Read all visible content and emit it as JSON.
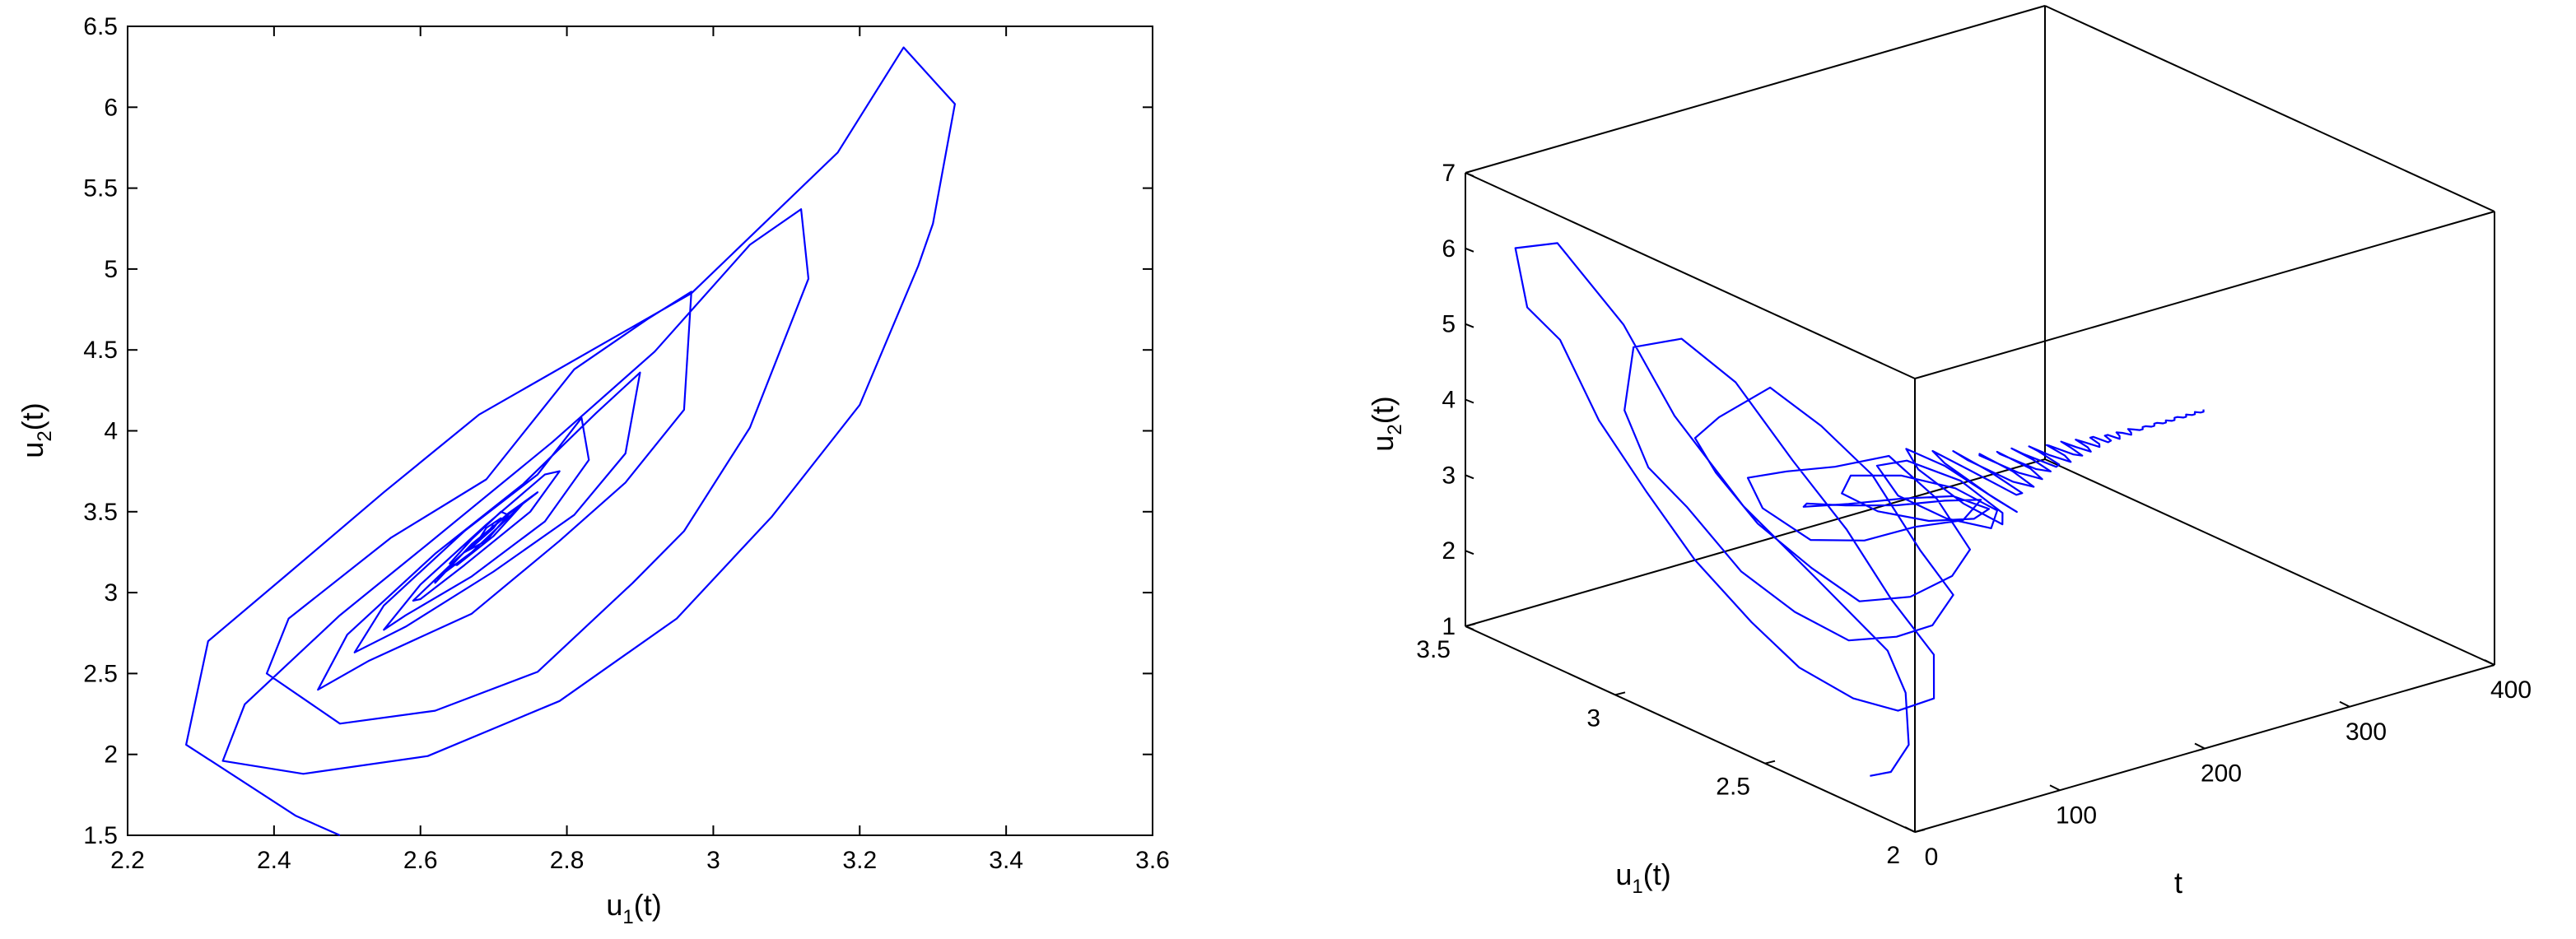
{
  "chart_data": [
    {
      "type": "line",
      "title": "",
      "xlabel": "u1(t)",
      "xlabel_main": "u",
      "xlabel_sub": "1",
      "xlabel_tail": "(t)",
      "ylabel": "u2(t)",
      "ylabel_main": "u",
      "ylabel_sub": "2",
      "ylabel_tail": "(t)",
      "xlim": [
        2.2,
        3.6
      ],
      "ylim": [
        1.5,
        6.5
      ],
      "grid": false,
      "xticks": [
        2.2,
        2.4,
        2.6,
        2.8,
        3.0,
        3.2,
        3.4,
        3.6
      ],
      "xtick_labels": [
        "2.2",
        "2.4",
        "2.6",
        "2.8",
        "3",
        "3.2",
        "3.4",
        "3.6"
      ],
      "yticks": [
        1.5,
        2.0,
        2.5,
        3.0,
        3.5,
        4.0,
        4.5,
        5.0,
        5.5,
        6.0,
        6.5
      ],
      "ytick_labels": [
        "1.5",
        "2",
        "2.5",
        "3",
        "3.5",
        "4",
        "4.5",
        "5",
        "5.5",
        "6",
        "6.5"
      ],
      "line_color": "#0000ff",
      "series": [
        {
          "x": [
            2.49,
            2.43,
            2.28,
            2.31,
            2.42,
            2.55,
            2.68,
            2.97,
            3.17,
            3.26,
            3.33,
            3.3,
            3.28,
            3.2,
            3.08,
            2.95,
            2.79,
            2.61,
            2.44,
            2.33,
            2.36,
            2.49,
            2.61,
            2.78,
            2.92,
            3.05,
            3.12,
            3.13,
            3.05,
            2.96,
            2.89,
            2.76,
            2.62,
            2.49,
            2.39,
            2.42,
            2.56,
            2.69,
            2.81,
            2.91,
            2.97,
            2.96,
            2.88,
            2.79,
            2.67,
            2.53,
            2.46,
            2.5,
            2.62,
            2.74,
            2.84,
            2.9,
            2.88,
            2.81,
            2.7,
            2.58,
            2.51,
            2.55,
            2.66,
            2.76,
            2.82,
            2.83,
            2.77,
            2.67,
            2.58,
            2.55,
            2.6,
            2.69,
            2.77,
            2.79,
            2.75,
            2.66,
            2.6,
            2.59,
            2.65,
            2.72,
            2.76,
            2.74,
            2.67,
            2.62,
            2.62,
            2.67,
            2.73,
            2.74,
            2.7,
            2.65,
            2.64,
            2.67,
            2.71,
            2.72,
            2.69,
            2.66,
            2.67,
            2.7,
            2.71,
            2.69,
            2.68,
            2.69,
            2.7
          ],
          "y": [
            1.47,
            1.62,
            2.06,
            2.7,
            3.12,
            3.62,
            4.1,
            4.85,
            5.72,
            6.37,
            6.02,
            5.28,
            5.02,
            4.16,
            3.47,
            2.84,
            2.33,
            1.99,
            1.88,
            1.96,
            2.31,
            2.86,
            3.3,
            3.93,
            4.49,
            5.15,
            5.37,
            4.94,
            4.02,
            3.38,
            3.06,
            2.51,
            2.27,
            2.19,
            2.5,
            2.84,
            3.34,
            3.7,
            4.38,
            4.69,
            4.86,
            4.13,
            3.68,
            3.32,
            2.87,
            2.58,
            2.4,
            2.74,
            3.24,
            3.67,
            4.11,
            4.36,
            3.86,
            3.48,
            3.13,
            2.79,
            2.63,
            2.92,
            3.38,
            3.73,
            4.08,
            3.82,
            3.44,
            3.1,
            2.86,
            2.77,
            3.05,
            3.42,
            3.73,
            3.75,
            3.5,
            3.17,
            2.96,
            2.95,
            3.21,
            3.49,
            3.62,
            3.55,
            3.25,
            3.08,
            3.06,
            3.3,
            3.52,
            3.55,
            3.35,
            3.17,
            3.18,
            3.33,
            3.5,
            3.48,
            3.32,
            3.25,
            3.28,
            3.4,
            3.46,
            3.4,
            3.33,
            3.36,
            3.42
          ]
        }
      ]
    },
    {
      "type": "line",
      "title": "",
      "projection": "3d",
      "xlabel": "t",
      "ylabel": "u1(t)",
      "ylabel_main": "u",
      "ylabel_sub": "1",
      "ylabel_tail": "(t)",
      "zlabel": "u2(t)",
      "zlabel_main": "u",
      "zlabel_sub": "2",
      "zlabel_tail": "(t)",
      "tlim": [
        0,
        400
      ],
      "u1lim": [
        2.0,
        3.5
      ],
      "zlim": [
        1,
        7
      ],
      "tticks": [
        0,
        100,
        200,
        300,
        400
      ],
      "ttick_labels": [
        "0",
        "100",
        "200",
        "300",
        "400"
      ],
      "u1ticks": [
        2.0,
        2.5,
        3.0,
        3.5
      ],
      "u1tick_labels": [
        "2",
        "2.5",
        "3",
        "3.5"
      ],
      "zticks": [
        1,
        2,
        3,
        4,
        5,
        6,
        7
      ],
      "ztick_labels": [
        "1",
        "2",
        "3",
        "4",
        "5",
        "6",
        "7"
      ],
      "grid": false,
      "line_color": "#0000ff",
      "series": [
        {
          "t": [
            0,
            2,
            4,
            6,
            8,
            10,
            12,
            14,
            16,
            18,
            20,
            22,
            24,
            26,
            28,
            30,
            32,
            34,
            36,
            38,
            40,
            42,
            44,
            46,
            48,
            50,
            52,
            54,
            56,
            58,
            60,
            62,
            64,
            66,
            68,
            70,
            72,
            74,
            76,
            78,
            80,
            82,
            84,
            86,
            88,
            90,
            92,
            94,
            96,
            98,
            100,
            102,
            104,
            106,
            108,
            110,
            112,
            114,
            116,
            118,
            120,
            122,
            124,
            126,
            128,
            130,
            132,
            134,
            136,
            138,
            140,
            142,
            144,
            146,
            148,
            150,
            152,
            154,
            156,
            158,
            160,
            162,
            164,
            166,
            168,
            170,
            172,
            174,
            176,
            178,
            180,
            182,
            184,
            186,
            188,
            190,
            192,
            194,
            196,
            198,
            200,
            202,
            204,
            206,
            208,
            210,
            212,
            214,
            216,
            218,
            220,
            222,
            224,
            226,
            228,
            230,
            232,
            234,
            236,
            238,
            240,
            242,
            244,
            246,
            248,
            250,
            252,
            254,
            256,
            258,
            260,
            262,
            264,
            266,
            268,
            270,
            272,
            274,
            276,
            278,
            280,
            282,
            284,
            286,
            288,
            290,
            292,
            294,
            296,
            298,
            300,
            302,
            304,
            306,
            308,
            310,
            312,
            314,
            316,
            318,
            320,
            322,
            324,
            326,
            328,
            330,
            332,
            334,
            336,
            338,
            340,
            342,
            344,
            346,
            348,
            350
          ],
          "u1": [
            2.15,
            2.09,
            2.04,
            2.06,
            2.13,
            2.38,
            2.63,
            2.87,
            3.05,
            3.28,
            3.43,
            3.4,
            3.3,
            3.18,
            3.03,
            2.88,
            2.7,
            2.55,
            2.38,
            2.24,
            2.13,
            2.14,
            2.29,
            2.45,
            2.64,
            2.84,
            3.03,
            3.2,
            3.24,
            3.17,
            3.05,
            2.88,
            2.71,
            2.54,
            2.39,
            2.28,
            2.22,
            2.34,
            2.51,
            2.69,
            2.87,
            3.05,
            3.14,
            3.08,
            2.95,
            2.78,
            2.63,
            2.47,
            2.34,
            2.29,
            2.41,
            2.58,
            2.77,
            2.94,
            3.08,
            3.04,
            2.89,
            2.72,
            2.56,
            2.41,
            2.36,
            2.49,
            2.66,
            2.84,
            2.98,
            3.0,
            2.86,
            2.69,
            2.53,
            2.42,
            2.48,
            2.64,
            2.82,
            2.95,
            2.93,
            2.77,
            2.6,
            2.47,
            2.5,
            2.66,
            2.83,
            2.91,
            2.82,
            2.65,
            2.52,
            2.53,
            2.67,
            2.83,
            2.88,
            2.76,
            2.6,
            2.54,
            2.64,
            2.8,
            2.85,
            2.73,
            2.59,
            2.58,
            2.7,
            2.83,
            2.79,
            2.65,
            2.59,
            2.67,
            2.79,
            2.8,
            2.68,
            2.61,
            2.66,
            2.78,
            2.78,
            2.67,
            2.63,
            2.7,
            2.78,
            2.75,
            2.65,
            2.65,
            2.73,
            2.77,
            2.71,
            2.65,
            2.68,
            2.75,
            2.75,
            2.68,
            2.66,
            2.71,
            2.75,
            2.71,
            2.67,
            2.69,
            2.74,
            2.72,
            2.68,
            2.69,
            2.73,
            2.73,
            2.69,
            2.69,
            2.72,
            2.72,
            2.69,
            2.7,
            2.72,
            2.71,
            2.69,
            2.7,
            2.72,
            2.71,
            2.7,
            2.7,
            2.71,
            2.71,
            2.7,
            2.7,
            2.71,
            2.71,
            2.7,
            2.7,
            2.71,
            2.7,
            2.7,
            2.71,
            2.71,
            2.7,
            2.7,
            2.71,
            2.7,
            2.7,
            2.71,
            2.7,
            2.7,
            2.71
          ],
          "u2": [
            1.47,
            1.62,
            2.06,
            2.7,
            3.12,
            3.62,
            4.1,
            4.85,
            5.72,
            6.37,
            6.02,
            5.28,
            5.02,
            4.16,
            3.47,
            2.84,
            2.33,
            1.99,
            1.88,
            1.96,
            2.31,
            2.86,
            3.3,
            3.93,
            4.49,
            5.15,
            5.37,
            4.94,
            4.02,
            3.38,
            3.06,
            2.51,
            2.27,
            2.19,
            2.5,
            2.84,
            3.34,
            3.7,
            4.38,
            4.69,
            4.86,
            4.13,
            3.68,
            3.32,
            2.87,
            2.58,
            2.4,
            2.74,
            3.24,
            3.67,
            4.11,
            4.36,
            3.86,
            3.48,
            3.13,
            2.79,
            2.63,
            2.92,
            3.38,
            3.73,
            4.08,
            3.82,
            3.44,
            3.1,
            2.86,
            2.77,
            3.05,
            3.42,
            3.73,
            3.75,
            3.5,
            3.17,
            2.96,
            2.95,
            3.21,
            3.49,
            3.62,
            3.55,
            3.25,
            3.08,
            3.06,
            3.3,
            3.52,
            3.55,
            3.35,
            3.17,
            3.18,
            3.33,
            3.5,
            3.48,
            3.32,
            3.25,
            3.28,
            3.4,
            3.46,
            3.4,
            3.33,
            3.36,
            3.42,
            3.44,
            3.38,
            3.34,
            3.37,
            3.42,
            3.42,
            3.37,
            3.35,
            3.38,
            3.42,
            3.41,
            3.37,
            3.36,
            3.39,
            3.41,
            3.4,
            3.37,
            3.37,
            3.39,
            3.41,
            3.39,
            3.37,
            3.38,
            3.4,
            3.4,
            3.38,
            3.38,
            3.39,
            3.4,
            3.39,
            3.38,
            3.38,
            3.39,
            3.39,
            3.38,
            3.38,
            3.39,
            3.39,
            3.39,
            3.38,
            3.39,
            3.39,
            3.39,
            3.38,
            3.39,
            3.39,
            3.39,
            3.39,
            3.39,
            3.39,
            3.39,
            3.39,
            3.39,
            3.39,
            3.39,
            3.39,
            3.39,
            3.39,
            3.39,
            3.39,
            3.39,
            3.39,
            3.39,
            3.39,
            3.39,
            3.39,
            3.39,
            3.39,
            3.39,
            3.39,
            3.39,
            3.39,
            3.39,
            3.39,
            3.39
          ]
        }
      ]
    }
  ]
}
